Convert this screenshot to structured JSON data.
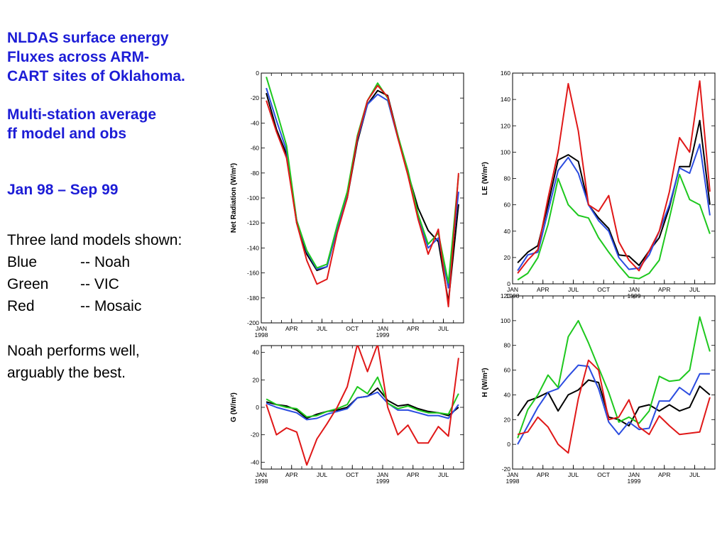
{
  "text": {
    "title": [
      "NLDAS surface energy",
      "Fluxes across ARM-",
      "CART sites of Oklahoma.",
      "",
      "Multi-station average",
      "ff model and obs"
    ],
    "period": "Jan 98 – Sep 99",
    "models_header": "Three land models shown:",
    "models": [
      {
        "color": "Blue",
        "model": "-- Noah"
      },
      {
        "color": "Green",
        "model": "-- VIC"
      },
      {
        "color": "Red",
        "model": "-- Mosaic"
      }
    ],
    "note": [
      "Noah performs well,",
      "arguably the best."
    ]
  },
  "chart_data": [
    {
      "type": "line",
      "ylabel": "Net Radiation (W/m²)",
      "ylim": [
        -200,
        0
      ],
      "yticks": [
        0,
        -20,
        -40,
        -60,
        -80,
        -100,
        -120,
        -140,
        -160,
        -180,
        -200
      ],
      "xticks": [
        "JAN\n1998",
        "APR",
        "JUL",
        "OCT",
        "JAN\n1999",
        "APR",
        "JUL"
      ],
      "x": [
        0.5,
        1.5,
        2.5,
        3.5,
        4.5,
        5.5,
        6.5,
        7.5,
        8.5,
        9.5,
        10.5,
        11.5,
        12.5,
        13.5,
        14.5,
        15.5,
        16.5,
        17.5,
        18.5,
        19.5
      ],
      "series": [
        {
          "color": "#000000",
          "values": [
            -16,
            -45,
            -65,
            -120,
            -145,
            -158,
            -155,
            -125,
            -100,
            -55,
            -25,
            -14,
            -18,
            -50,
            -80,
            -108,
            -126,
            -135,
            -183,
            -105
          ]
        },
        {
          "color": "#2b4ce0",
          "values": [
            -12,
            -38,
            -62,
            -118,
            -143,
            -157,
            -155,
            -125,
            -98,
            -53,
            -25,
            -17,
            -22,
            -52,
            -78,
            -115,
            -140,
            -132,
            -172,
            -95
          ]
        },
        {
          "color": "#1ec81e",
          "values": [
            -3,
            -30,
            -58,
            -118,
            -142,
            -156,
            -153,
            -122,
            -95,
            -50,
            -22,
            -8,
            -20,
            -50,
            -78,
            -113,
            -137,
            -128,
            -168,
            -82
          ]
        },
        {
          "color": "#e01818",
          "values": [
            -22,
            -47,
            -68,
            -120,
            -150,
            -169,
            -165,
            -128,
            -100,
            -52,
            -22,
            -10,
            -19,
            -52,
            -82,
            -117,
            -145,
            -125,
            -187,
            -80
          ]
        }
      ]
    },
    {
      "type": "line",
      "ylabel": "LE (W/m²)",
      "ylim": [
        0,
        160
      ],
      "yticks": [
        160,
        140,
        120,
        100,
        80,
        60,
        40,
        20,
        0
      ],
      "xticks": [
        "JAN\n1998",
        "APR",
        "JUL",
        "OCT",
        "JAN\n1999",
        "APR",
        "JUL"
      ],
      "x": [
        0.5,
        1.5,
        2.5,
        3.5,
        4.5,
        5.5,
        6.5,
        7.5,
        8.5,
        9.5,
        10.5,
        11.5,
        12.5,
        13.5,
        14.5,
        15.5,
        16.5,
        17.5,
        18.5,
        19.5
      ],
      "series": [
        {
          "color": "#000000",
          "values": [
            16,
            24,
            29,
            60,
            94,
            98,
            93,
            60,
            50,
            42,
            22,
            21,
            14,
            25,
            35,
            58,
            89,
            89,
            124,
            60
          ]
        },
        {
          "color": "#2b4ce0",
          "values": [
            10,
            22,
            24,
            55,
            86,
            96,
            84,
            60,
            48,
            40,
            20,
            11,
            12,
            22,
            40,
            60,
            88,
            84,
            106,
            52
          ]
        },
        {
          "color": "#1ec81e",
          "values": [
            3,
            8,
            20,
            45,
            80,
            60,
            52,
            50,
            35,
            24,
            14,
            5,
            4,
            8,
            18,
            50,
            83,
            64,
            60,
            38
          ]
        },
        {
          "color": "#e01818",
          "values": [
            8,
            18,
            26,
            65,
            100,
            152,
            116,
            60,
            55,
            67,
            32,
            18,
            10,
            25,
            40,
            70,
            111,
            100,
            154,
            70
          ]
        }
      ]
    },
    {
      "type": "line",
      "ylabel": "G (W/m²)",
      "ylim": [
        -45,
        45
      ],
      "yticks": [
        40,
        20,
        0,
        -20,
        -40
      ],
      "xticks": [
        "JAN\n1998",
        "APR",
        "JUL",
        "OCT",
        "JAN\n1999",
        "APR",
        "JUL"
      ],
      "x": [
        0.5,
        1.5,
        2.5,
        3.5,
        4.5,
        5.5,
        6.5,
        7.5,
        8.5,
        9.5,
        10.5,
        11.5,
        12.5,
        13.5,
        14.5,
        15.5,
        16.5,
        17.5,
        18.5,
        19.5
      ],
      "series": [
        {
          "color": "#000000",
          "values": [
            4,
            2,
            1,
            -2,
            -8,
            -5,
            -3,
            -2,
            0,
            7,
            8,
            14,
            5,
            1,
            2,
            -1,
            -3,
            -4,
            -6,
            0
          ]
        },
        {
          "color": "#2b4ce0",
          "values": [
            3,
            0,
            -2,
            -4,
            -9,
            -8,
            -5,
            -3,
            -1,
            7,
            8,
            11,
            3,
            -2,
            -2,
            -4,
            -6,
            -6,
            -8,
            2
          ]
        },
        {
          "color": "#1ec81e",
          "values": [
            6,
            2,
            0,
            -1,
            -7,
            -6,
            -3,
            -1,
            2,
            15,
            10,
            22,
            3,
            -1,
            1,
            -2,
            -4,
            -4,
            -5,
            10
          ]
        },
        {
          "color": "#e01818",
          "values": [
            2,
            -20,
            -15,
            -18,
            -42,
            -23,
            -12,
            0,
            15,
            46,
            26,
            46,
            0,
            -20,
            -13,
            -26,
            -26,
            -14,
            -21,
            36
          ]
        }
      ]
    },
    {
      "type": "line",
      "ylabel": "H (W/m²)",
      "ylim": [
        -20,
        120
      ],
      "yticks": [
        120,
        100,
        80,
        60,
        40,
        20,
        0,
        -20
      ],
      "xticks": [
        "JAN\n1998",
        "APR",
        "JUL",
        "OCT",
        "JAN\n1999",
        "APR",
        "JUL"
      ],
      "x": [
        0.5,
        1.5,
        2.5,
        3.5,
        4.5,
        5.5,
        6.5,
        7.5,
        8.5,
        9.5,
        10.5,
        11.5,
        12.5,
        13.5,
        14.5,
        15.5,
        16.5,
        17.5,
        18.5,
        19.5
      ],
      "series": [
        {
          "color": "#000000",
          "values": [
            23,
            35,
            38,
            42,
            27,
            40,
            44,
            52,
            50,
            22,
            20,
            15,
            30,
            32,
            27,
            32,
            27,
            30,
            47,
            40
          ]
        },
        {
          "color": "#2b4ce0",
          "values": [
            0,
            15,
            30,
            42,
            45,
            55,
            64,
            63,
            45,
            18,
            8,
            18,
            12,
            13,
            35,
            35,
            46,
            40,
            57,
            57
          ]
        },
        {
          "color": "#1ec81e",
          "values": [
            5,
            28,
            40,
            56,
            46,
            87,
            100,
            82,
            62,
            42,
            18,
            22,
            17,
            27,
            55,
            51,
            52,
            60,
            103,
            75
          ]
        },
        {
          "color": "#e01818",
          "values": [
            8,
            10,
            22,
            14,
            0,
            -7,
            37,
            68,
            60,
            20,
            22,
            36,
            14,
            8,
            23,
            15,
            8,
            9,
            10,
            38
          ]
        }
      ]
    }
  ]
}
